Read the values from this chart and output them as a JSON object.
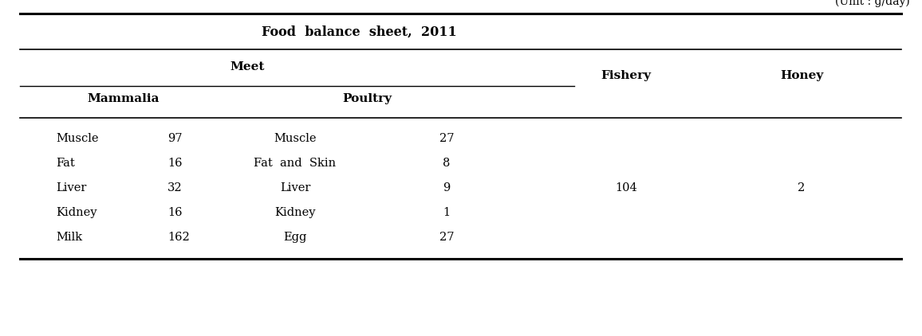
{
  "unit_label": "(Unit : g/day)",
  "title": "Food  balance  sheet,  2011",
  "meet_label": "Meet",
  "mammalia_label": "Mammalia",
  "poultry_label": "Poultry",
  "fishery_label": "Fishery",
  "honey_label": "Honey",
  "rows": [
    {
      "mammalia_item": "Muscle",
      "mammalia_val": "97",
      "poultry_item": "Muscle",
      "poultry_val": "27",
      "fishery_val": "",
      "honey_val": ""
    },
    {
      "mammalia_item": "Fat",
      "mammalia_val": "16",
      "poultry_item": "Fat  and  Skin",
      "poultry_val": "8",
      "fishery_val": "",
      "honey_val": ""
    },
    {
      "mammalia_item": "Liver",
      "mammalia_val": "32",
      "poultry_item": "Liver",
      "poultry_val": "9",
      "fishery_val": "104",
      "honey_val": "2"
    },
    {
      "mammalia_item": "Kidney",
      "mammalia_val": "16",
      "poultry_item": "Kidney",
      "poultry_val": "1",
      "fishery_val": "",
      "honey_val": ""
    },
    {
      "mammalia_item": "Milk",
      "mammalia_val": "162",
      "poultry_item": "Egg",
      "poultry_val": "27",
      "fishery_val": "",
      "honey_val": ""
    }
  ],
  "background_color": "#ffffff",
  "text_color": "#000000",
  "figwidth": 11.56,
  "figheight": 4.22,
  "dpi": 100
}
